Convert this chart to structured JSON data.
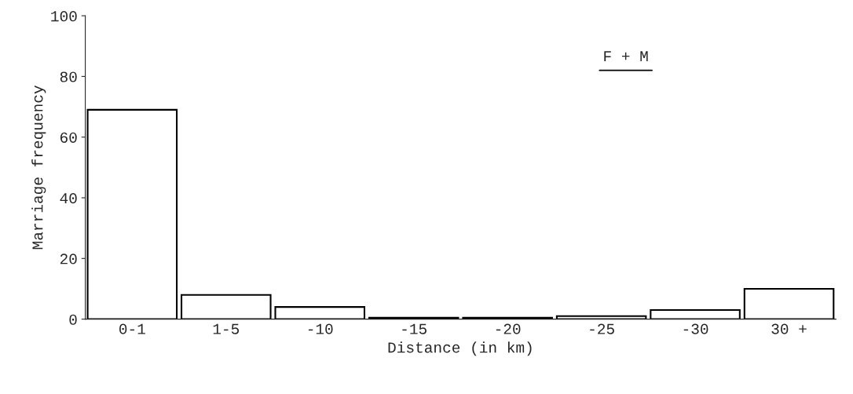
{
  "chart_data": {
    "type": "bar",
    "xlabel": "Distance (in km)",
    "ylabel": "Marriage frequency",
    "categories": [
      "0-1",
      "1-5",
      "-10",
      "-15",
      "-20",
      "-25",
      "-30",
      "30 +"
    ],
    "values": [
      69,
      8,
      4,
      0.5,
      0.5,
      1,
      3,
      10
    ],
    "color": "#ffffff",
    "ylim": [
      0,
      100
    ],
    "yticks": [
      0,
      20,
      40,
      60,
      80,
      100
    ],
    "annotations": [
      {
        "text": "F + M"
      }
    ],
    "grid": false,
    "legend": false
  }
}
